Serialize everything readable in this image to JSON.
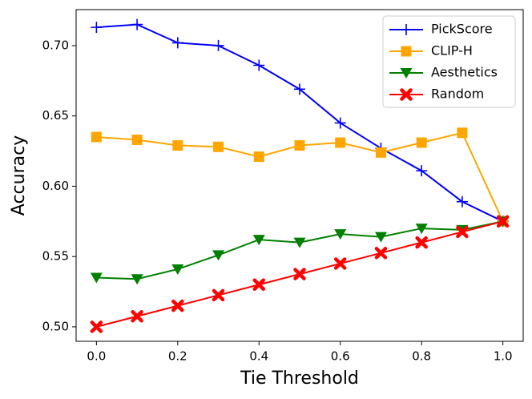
{
  "chart_data": {
    "type": "line",
    "x_label": "Tie Threshold",
    "y_label": "Accuracy",
    "x": [
      0,
      0.1,
      0.2,
      0.3,
      0.4,
      0.5,
      0.6,
      0.7,
      0.8,
      0.9,
      1.0
    ],
    "series": [
      {
        "name": "PickScore",
        "color": "#0000ff",
        "marker": "plus",
        "values": [
          0.713,
          0.715,
          0.702,
          0.7,
          0.686,
          0.669,
          0.645,
          0.627,
          0.611,
          0.589,
          0.575
        ]
      },
      {
        "name": "CLIP-H",
        "color": "#ffa500",
        "marker": "square",
        "values": [
          0.635,
          0.633,
          0.629,
          0.628,
          0.621,
          0.629,
          0.631,
          0.624,
          0.631,
          0.638,
          0.575
        ]
      },
      {
        "name": "Aesthetics",
        "color": "#008000",
        "marker": "triangle-down",
        "values": [
          0.535,
          0.534,
          0.541,
          0.551,
          0.562,
          0.56,
          0.566,
          0.564,
          0.57,
          0.569,
          0.575
        ]
      },
      {
        "name": "Random",
        "color": "#ff0000",
        "marker": "x",
        "values": [
          0.5,
          0.5075,
          0.515,
          0.5225,
          0.53,
          0.5375,
          0.545,
          0.5525,
          0.56,
          0.5675,
          0.575
        ]
      }
    ],
    "xlim": [
      -0.05,
      1.05
    ],
    "xticks": [
      {
        "value": 0,
        "label": "0.0"
      },
      0.2,
      0.4,
      0.6,
      0.8,
      {
        "value": 1,
        "label": "1.0"
      }
    ],
    "ylim": [
      0.4897,
      0.7256
    ],
    "yticks": [
      {
        "value": 0.5,
        "label": "0.50"
      },
      0.55,
      {
        "value": 0.6,
        "label": "0.60"
      },
      0.65,
      {
        "value": 0.7,
        "label": "0.70"
      }
    ],
    "grid": false,
    "legend": "upper right"
  }
}
